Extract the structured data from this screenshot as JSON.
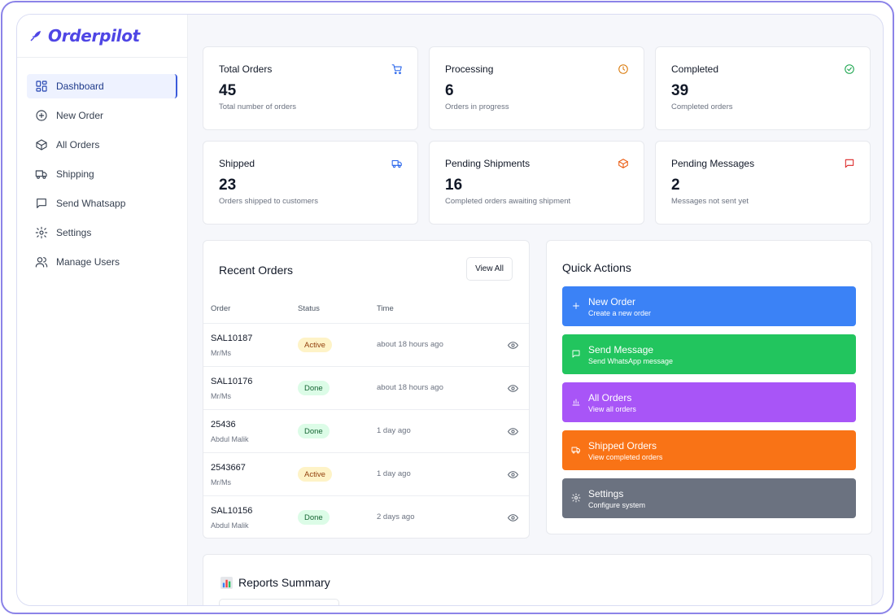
{
  "brand": {
    "name": "Orderpilot",
    "color": "#4f46e5"
  },
  "sidebar": {
    "items": [
      {
        "label": "Dashboard",
        "icon": "dashboard-icon",
        "active": true
      },
      {
        "label": "New Order",
        "icon": "plus-circle-icon"
      },
      {
        "label": "All Orders",
        "icon": "box-icon"
      },
      {
        "label": "Shipping",
        "icon": "truck-icon"
      },
      {
        "label": "Send Whatsapp",
        "icon": "message-icon"
      },
      {
        "label": "Settings",
        "icon": "gear-icon"
      },
      {
        "label": "Manage Users",
        "icon": "users-icon"
      }
    ]
  },
  "stats": [
    {
      "label": "Total Orders",
      "value": "45",
      "sub": "Total number of orders",
      "icon": "cart-icon",
      "color": "#2563eb"
    },
    {
      "label": "Processing",
      "value": "6",
      "sub": "Orders in progress",
      "icon": "clock-icon",
      "color": "#d97706"
    },
    {
      "label": "Completed",
      "value": "39",
      "sub": "Completed orders",
      "icon": "check-circle-icon",
      "color": "#16a34a"
    },
    {
      "label": "Shipped",
      "value": "23",
      "sub": "Orders shipped to customers",
      "icon": "truck-icon",
      "color": "#2563eb"
    },
    {
      "label": "Pending Shipments",
      "value": "16",
      "sub": "Completed orders awaiting shipment",
      "icon": "box-icon",
      "color": "#ea580c"
    },
    {
      "label": "Pending Messages",
      "value": "2",
      "sub": "Messages not sent yet",
      "icon": "message-icon",
      "color": "#dc2626"
    }
  ],
  "recent": {
    "title": "Recent Orders",
    "view_all": "View All",
    "headers": {
      "order": "Order",
      "status": "Status",
      "time": "Time"
    },
    "rows": [
      {
        "id": "SAL10187",
        "customer": "Mr/Ms",
        "status": "Active",
        "time": "about 18 hours ago"
      },
      {
        "id": "SAL10176",
        "customer": "Mr/Ms",
        "status": "Done",
        "time": "about 18 hours ago"
      },
      {
        "id": "25436",
        "customer": "Abdul Malik",
        "status": "Done",
        "time": "1 day ago"
      },
      {
        "id": "2543667",
        "customer": "Mr/Ms",
        "status": "Active",
        "time": "1 day ago"
      },
      {
        "id": "SAL10156",
        "customer": "Abdul Malik",
        "status": "Done",
        "time": "2 days ago"
      }
    ]
  },
  "quick": {
    "title": "Quick Actions",
    "actions": [
      {
        "title": "New Order",
        "sub": "Create a new order",
        "icon": "plus-icon",
        "color": "#3b82f6"
      },
      {
        "title": "Send Message",
        "sub": "Send WhatsApp message",
        "icon": "message-icon",
        "color": "#22c55e"
      },
      {
        "title": "All Orders",
        "sub": "View all orders",
        "icon": "bar-chart-icon",
        "color": "#a855f7"
      },
      {
        "title": "Shipped Orders",
        "sub": "View completed orders",
        "icon": "truck-icon",
        "color": "#f97316"
      },
      {
        "title": "Settings",
        "sub": "Configure system",
        "icon": "gear-icon",
        "color": "#6b7280"
      }
    ]
  },
  "reports": {
    "title": "Reports Summary",
    "icon": "report-chart-icon"
  }
}
